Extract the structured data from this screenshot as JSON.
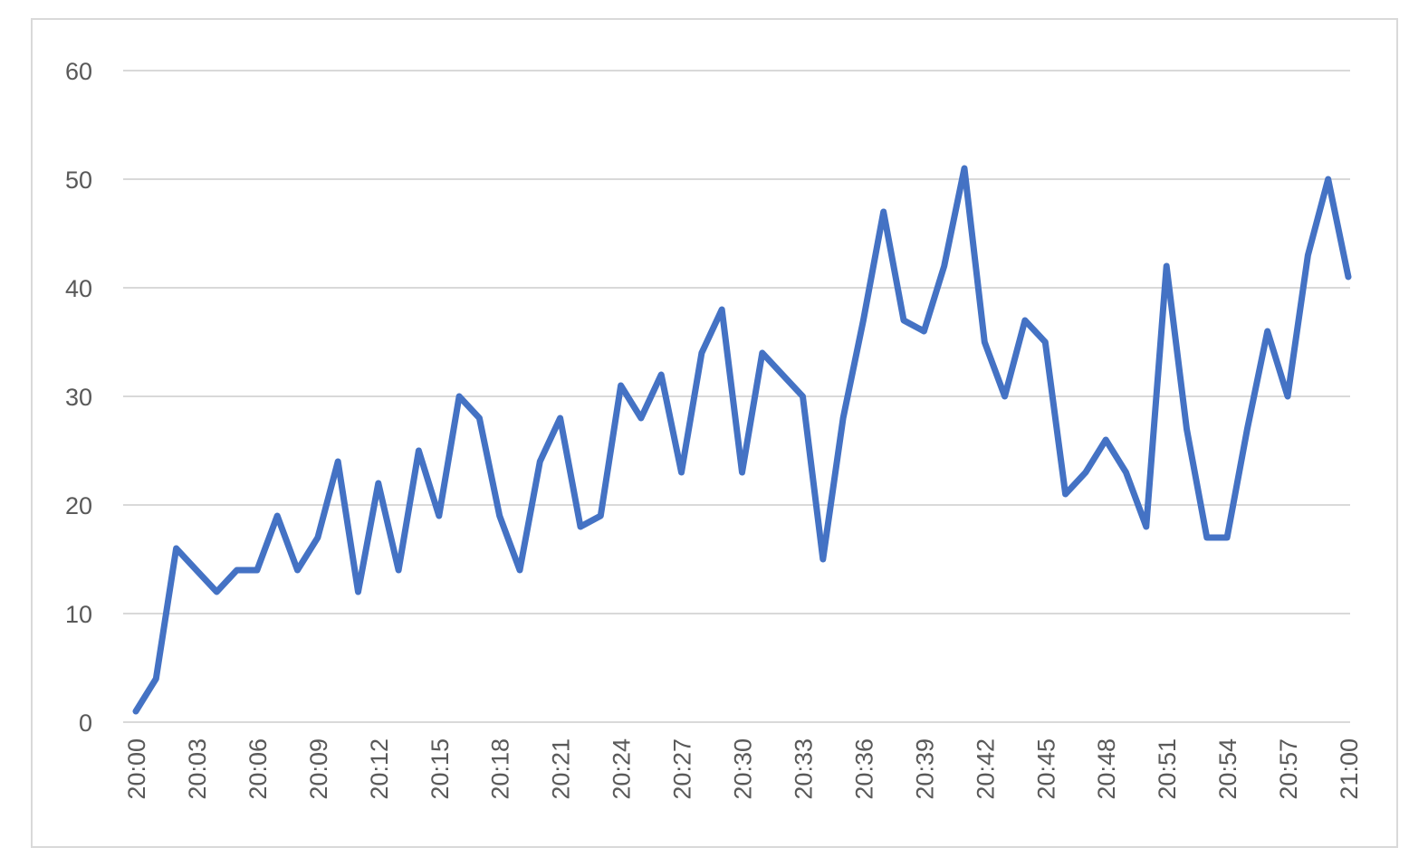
{
  "colors": {
    "series": "#4472c4",
    "grid": "#d9d9d9",
    "tick_text": "#595959",
    "frame": "#d9d9d9"
  },
  "chart_data": {
    "type": "line",
    "title": "",
    "xlabel": "",
    "ylabel": "",
    "ylim": [
      0,
      60
    ],
    "y_ticks": [
      0,
      10,
      20,
      30,
      40,
      50,
      60
    ],
    "x_tick_labels": [
      "20:00",
      "20:03",
      "20:06",
      "20:09",
      "20:12",
      "20:15",
      "20:18",
      "20:21",
      "20:24",
      "20:27",
      "20:30",
      "20:33",
      "20:36",
      "20:39",
      "20:42",
      "20:45",
      "20:48",
      "20:51",
      "20:54",
      "20:57",
      "21:00"
    ],
    "grid": true,
    "legend": "none",
    "x": [
      "20:00",
      "20:01",
      "20:02",
      "20:03",
      "20:04",
      "20:05",
      "20:06",
      "20:07",
      "20:08",
      "20:09",
      "20:10",
      "20:11",
      "20:12",
      "20:13",
      "20:14",
      "20:15",
      "20:16",
      "20:17",
      "20:18",
      "20:19",
      "20:20",
      "20:21",
      "20:22",
      "20:23",
      "20:24",
      "20:25",
      "20:26",
      "20:27",
      "20:28",
      "20:29",
      "20:30",
      "20:31",
      "20:32",
      "20:33",
      "20:34",
      "20:35",
      "20:36",
      "20:37",
      "20:38",
      "20:39",
      "20:40",
      "20:41",
      "20:42",
      "20:43",
      "20:44",
      "20:45",
      "20:46",
      "20:47",
      "20:48",
      "20:49",
      "20:50",
      "20:51",
      "20:52",
      "20:53",
      "20:54",
      "20:55",
      "20:56",
      "20:57",
      "20:58",
      "20:59",
      "21:00"
    ],
    "series": [
      {
        "values": [
          1,
          4,
          16,
          14,
          12,
          14,
          14,
          19,
          14,
          17,
          24,
          12,
          22,
          14,
          25,
          19,
          30,
          28,
          19,
          14,
          24,
          28,
          18,
          19,
          31,
          28,
          32,
          23,
          34,
          38,
          23,
          34,
          32,
          30,
          15,
          28,
          37,
          47,
          37,
          36,
          42,
          51,
          35,
          30,
          37,
          35,
          21,
          23,
          26,
          23,
          18,
          42,
          27,
          17,
          17,
          27,
          36,
          30,
          43,
          50,
          41
        ]
      }
    ]
  }
}
